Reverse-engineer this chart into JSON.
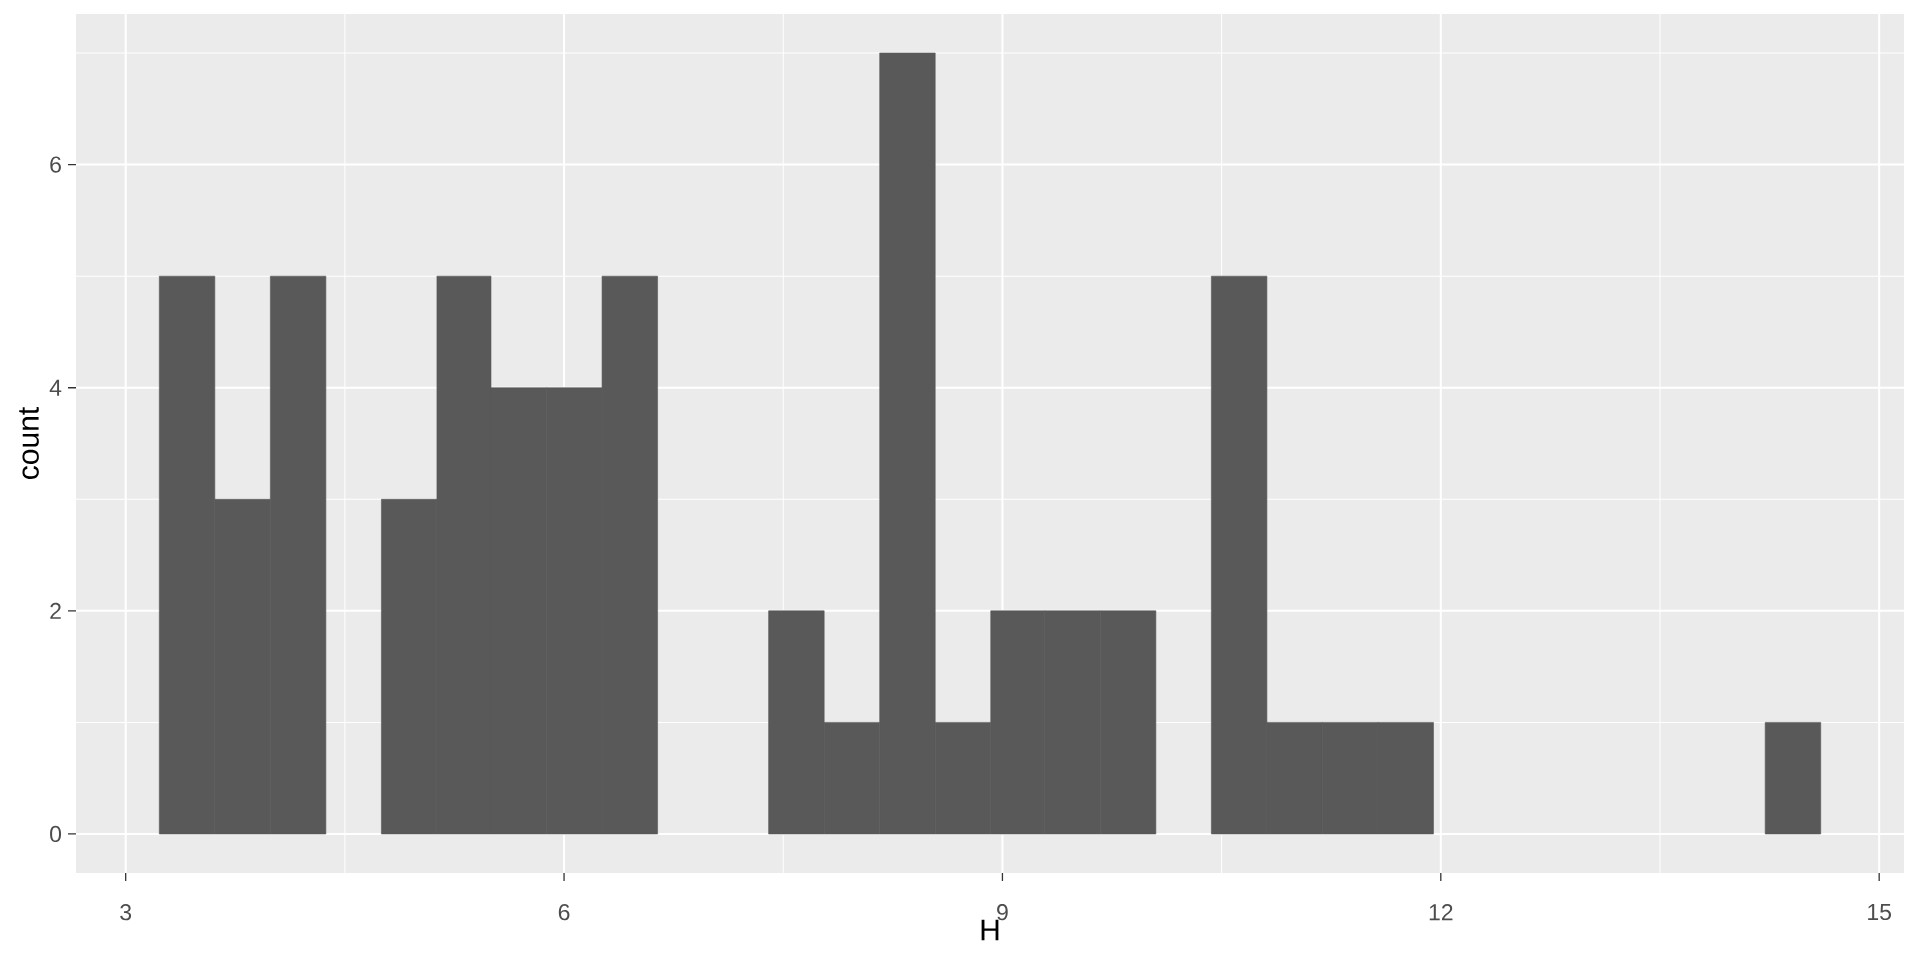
{
  "chart_data": {
    "type": "histogram",
    "xlabel": "H",
    "ylabel": "count",
    "bins": [
      3.23,
      3.61,
      3.99,
      4.37,
      4.75,
      5.13,
      5.5,
      5.88,
      6.26,
      6.64,
      7.4,
      7.78,
      8.16,
      8.54,
      8.92,
      9.29,
      9.67,
      10.05,
      10.43,
      10.81,
      11.19,
      11.57,
      11.95,
      14.22,
      14.6
    ],
    "values": [
      5,
      3,
      5,
      0,
      3,
      5,
      4,
      4,
      5,
      0,
      2,
      1,
      7,
      1,
      2,
      2,
      2,
      0,
      5,
      1,
      1,
      1,
      0,
      1
    ],
    "color": "#595959",
    "xlim": [
      2.66,
      15.17
    ],
    "ylim": [
      -0.35,
      7.35
    ],
    "xticks": [
      3,
      6,
      9,
      12,
      15
    ],
    "yticks": [
      0,
      2,
      4,
      6
    ],
    "grid": true
  }
}
